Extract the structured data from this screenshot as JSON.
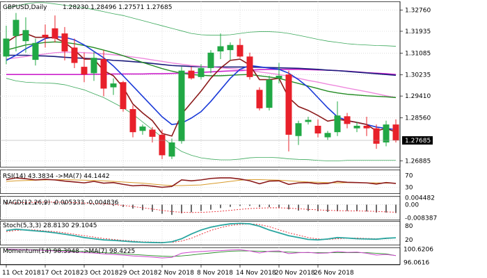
{
  "chart_data": {
    "type": "candlestick",
    "main": {
      "title": "GBPUSD,Daily",
      "ohlc_header": "1.28230 1.28496 1.27571 1.27685",
      "price_axis_ticks": [
        "1.32760",
        "1.31935",
        "1.31085",
        "1.30235",
        "1.29410",
        "1.28560",
        "1.26885"
      ],
      "current_price_label": "1.27685",
      "ylim": [
        1.2665,
        1.331
      ],
      "candles": [
        {
          "o": 1.3095,
          "h": 1.3215,
          "l": 1.3065,
          "c": 1.3165
        },
        {
          "o": 1.3175,
          "h": 1.3265,
          "l": 1.3115,
          "c": 1.3238
        },
        {
          "o": 1.3155,
          "h": 1.3248,
          "l": 1.311,
          "c": 1.3198
        },
        {
          "o": 1.3082,
          "h": 1.3165,
          "l": 1.306,
          "c": 1.3148
        },
        {
          "o": 1.318,
          "h": 1.322,
          "l": 1.313,
          "c": 1.317
        },
        {
          "o": 1.3205,
          "h": 1.3255,
          "l": 1.315,
          "c": 1.3165
        },
        {
          "o": 1.3185,
          "h": 1.321,
          "l": 1.308,
          "c": 1.3115
        },
        {
          "o": 1.313,
          "h": 1.3165,
          "l": 1.305,
          "c": 1.307
        },
        {
          "o": 1.3055,
          "h": 1.311,
          "l": 1.2995,
          "c": 1.3025
        },
        {
          "o": 1.303,
          "h": 1.3115,
          "l": 1.3,
          "c": 1.309
        },
        {
          "o": 1.3085,
          "h": 1.312,
          "l": 1.294,
          "c": 1.297
        },
        {
          "o": 1.2975,
          "h": 1.301,
          "l": 1.2945,
          "c": 1.299
        },
        {
          "o": 1.2995,
          "h": 1.3,
          "l": 1.288,
          "c": 1.289
        },
        {
          "o": 1.289,
          "h": 1.2905,
          "l": 1.278,
          "c": 1.28
        },
        {
          "o": 1.2805,
          "h": 1.283,
          "l": 1.279,
          "c": 1.2822
        },
        {
          "o": 1.281,
          "h": 1.282,
          "l": 1.276,
          "c": 1.2782
        },
        {
          "o": 1.279,
          "h": 1.281,
          "l": 1.2695,
          "c": 1.271
        },
        {
          "o": 1.2705,
          "h": 1.2775,
          "l": 1.2695,
          "c": 1.276
        },
        {
          "o": 1.2765,
          "h": 1.3055,
          "l": 1.2755,
          "c": 1.304
        },
        {
          "o": 1.304,
          "h": 1.3055,
          "l": 1.3005,
          "c": 1.301
        },
        {
          "o": 1.3015,
          "h": 1.3065,
          "l": 1.3005,
          "c": 1.305
        },
        {
          "o": 1.305,
          "h": 1.312,
          "l": 1.303,
          "c": 1.311
        },
        {
          "o": 1.3115,
          "h": 1.3185,
          "l": 1.3085,
          "c": 1.3135
        },
        {
          "o": 1.312,
          "h": 1.315,
          "l": 1.308,
          "c": 1.314
        },
        {
          "o": 1.314,
          "h": 1.3165,
          "l": 1.309,
          "c": 1.3095
        },
        {
          "o": 1.3095,
          "h": 1.311,
          "l": 1.3005,
          "c": 1.3015
        },
        {
          "o": 1.2965,
          "h": 1.2975,
          "l": 1.2885,
          "c": 1.2893
        },
        {
          "o": 1.2895,
          "h": 1.302,
          "l": 1.2885,
          "c": 1.3005
        },
        {
          "o": 1.301,
          "h": 1.307,
          "l": 1.299,
          "c": 1.302
        },
        {
          "o": 1.3025,
          "h": 1.304,
          "l": 1.2725,
          "c": 1.279
        },
        {
          "o": 1.2785,
          "h": 1.2845,
          "l": 1.275,
          "c": 1.2835
        },
        {
          "o": 1.284,
          "h": 1.286,
          "l": 1.283,
          "c": 1.2848
        },
        {
          "o": 1.2825,
          "h": 1.285,
          "l": 1.278,
          "c": 1.2795
        },
        {
          "o": 1.278,
          "h": 1.2805,
          "l": 1.277,
          "c": 1.2797
        },
        {
          "o": 1.28,
          "h": 1.292,
          "l": 1.2785,
          "c": 1.2865
        },
        {
          "o": 1.2862,
          "h": 1.2875,
          "l": 1.2815,
          "c": 1.2832
        },
        {
          "o": 1.2815,
          "h": 1.284,
          "l": 1.28,
          "c": 1.2825
        },
        {
          "o": 1.2825,
          "h": 1.286,
          "l": 1.2785,
          "c": 1.2815
        },
        {
          "o": 1.2815,
          "h": 1.283,
          "l": 1.2735,
          "c": 1.2755
        },
        {
          "o": 1.276,
          "h": 1.2845,
          "l": 1.2745,
          "c": 1.283
        },
        {
          "o": 1.283,
          "h": 1.285,
          "l": 1.276,
          "c": 1.2768
        }
      ],
      "overlays": [
        {
          "name": "bb-upper",
          "color": "#3aa85a",
          "width": 0.8,
          "values": [
            1.3285,
            1.3292,
            1.33,
            1.3305,
            1.3305,
            1.33,
            1.3295,
            1.329,
            1.3285,
            1.3278,
            1.327,
            1.3262,
            1.3255,
            1.3245,
            1.3235,
            1.3225,
            1.3215,
            1.3205,
            1.3195,
            1.3185,
            1.318,
            1.3178,
            1.3178,
            1.318,
            1.3185,
            1.319,
            1.3192,
            1.3192,
            1.319,
            1.3185,
            1.3178,
            1.317,
            1.3162,
            1.3155,
            1.315,
            1.3145,
            1.3142,
            1.314,
            1.3138,
            1.3137,
            1.3135
          ]
        },
        {
          "name": "bb-lower",
          "color": "#3aa85a",
          "width": 0.8,
          "values": [
            1.301,
            1.3,
            1.2995,
            1.2993,
            1.2992,
            1.299,
            1.2985,
            1.2975,
            1.2965,
            1.295,
            1.2935,
            1.2915,
            1.2895,
            1.287,
            1.284,
            1.281,
            1.278,
            1.275,
            1.2725,
            1.271,
            1.27,
            1.2695,
            1.2692,
            1.2692,
            1.2695,
            1.27,
            1.2702,
            1.2702,
            1.27,
            1.2696,
            1.2694,
            1.2693,
            1.269,
            1.2688,
            1.2688,
            1.269,
            1.269,
            1.269,
            1.269,
            1.269,
            1.269
          ]
        },
        {
          "name": "sma-200",
          "color": "#cc22cc",
          "width": 1.6,
          "values": [
            1.3025,
            1.3025,
            1.3025,
            1.3025,
            1.3025,
            1.3025,
            1.3025,
            1.3025,
            1.3025,
            1.3026,
            1.3026,
            1.3027,
            1.3027,
            1.3027,
            1.3027,
            1.3028,
            1.3028,
            1.3029,
            1.303,
            1.3031,
            1.3033,
            1.3035,
            1.3037,
            1.3039,
            1.304,
            1.3042,
            1.3044,
            1.3045,
            1.3045,
            1.3045,
            1.3045,
            1.3044,
            1.3043,
            1.3042,
            1.304,
            1.3038,
            1.3035,
            1.3032,
            1.303,
            1.3028,
            1.3025
          ]
        },
        {
          "name": "sma-100",
          "color": "#1a1a7a",
          "width": 1.6,
          "values": [
            1.31,
            1.31,
            1.31,
            1.3098,
            1.3097,
            1.3095,
            1.3092,
            1.309,
            1.3088,
            1.3086,
            1.3084,
            1.308,
            1.3078,
            1.3075,
            1.3072,
            1.3068,
            1.3064,
            1.306,
            1.3058,
            1.3056,
            1.3055,
            1.3054,
            1.3054,
            1.3054,
            1.3054,
            1.3054,
            1.3053,
            1.3052,
            1.3051,
            1.305,
            1.3049,
            1.3047,
            1.3045,
            1.3042,
            1.304,
            1.3037,
            1.3034,
            1.3031,
            1.3028,
            1.3025,
            1.3022
          ]
        },
        {
          "name": "sma-55",
          "color": "#ee88dd",
          "width": 1.4,
          "values": [
            1.3085,
            1.309,
            1.3095,
            1.31,
            1.3105,
            1.311,
            1.3112,
            1.3112,
            1.311,
            1.3108,
            1.3105,
            1.3102,
            1.3098,
            1.3093,
            1.3088,
            1.3082,
            1.3076,
            1.307,
            1.3065,
            1.306,
            1.3057,
            1.3054,
            1.3051,
            1.3048,
            1.3045,
            1.304,
            1.3035,
            1.303,
            1.3025,
            1.3018,
            1.301,
            1.3002,
            1.2995,
            1.2987,
            1.298,
            1.2972,
            1.2965,
            1.2958,
            1.295,
            1.2942,
            1.2935
          ]
        },
        {
          "name": "sma-30",
          "color": "#228b22",
          "width": 1.4,
          "values": [
            1.312,
            1.313,
            1.314,
            1.3145,
            1.315,
            1.3152,
            1.315,
            1.3145,
            1.3138,
            1.313,
            1.312,
            1.311,
            1.3098,
            1.3085,
            1.3072,
            1.306,
            1.3048,
            1.3038,
            1.303,
            1.3025,
            1.3022,
            1.302,
            1.302,
            1.3022,
            1.3024,
            1.3025,
            1.302,
            1.3015,
            1.301,
            1.3,
            1.299,
            1.298,
            1.297,
            1.296,
            1.2953,
            1.2948,
            1.2945,
            1.2942,
            1.294,
            1.2938,
            1.2935
          ]
        },
        {
          "name": "sma-10",
          "color": "#1a3ad8",
          "width": 1.6,
          "values": [
            1.308,
            1.31,
            1.3125,
            1.3145,
            1.3165,
            1.3172,
            1.317,
            1.316,
            1.314,
            1.3115,
            1.309,
            1.3058,
            1.302,
            1.298,
            1.294,
            1.29,
            1.286,
            1.283,
            1.2835,
            1.2855,
            1.288,
            1.292,
            1.2965,
            1.301,
            1.3045,
            1.306,
            1.3055,
            1.305,
            1.3045,
            1.303,
            1.3005,
            1.2975,
            1.2935,
            1.2895,
            1.286,
            1.2845,
            1.2838,
            1.283,
            1.282,
            1.2815,
            1.281
          ]
        },
        {
          "name": "ema-5",
          "color": "#8b1a1a",
          "width": 1.6,
          "values": [
            1.315,
            1.3175,
            1.3185,
            1.317,
            1.317,
            1.3168,
            1.315,
            1.312,
            1.3085,
            1.3085,
            1.304,
            1.302,
            1.2975,
            1.291,
            1.2875,
            1.2845,
            1.2795,
            1.2785,
            1.287,
            1.2915,
            1.296,
            1.301,
            1.305,
            1.308,
            1.3085,
            1.3062,
            1.3005,
            1.3005,
            1.301,
            1.2935,
            1.29,
            1.2885,
            1.2865,
            1.2843,
            1.285,
            1.2845,
            1.2838,
            1.283,
            1.2805,
            1.2815,
            1.28
          ]
        }
      ]
    },
    "rsi": {
      "header": "RSI(14) 43.3834 ->MA(7) 44.1442",
      "ticks": [
        "70",
        "30"
      ],
      "ylim": [
        10,
        90
      ],
      "rsi": [
        56,
        62,
        59,
        55,
        57,
        55,
        51,
        48,
        45,
        50,
        44,
        46,
        40,
        35,
        37,
        34,
        30,
        33,
        55,
        52,
        55,
        60,
        62,
        62,
        58,
        52,
        42,
        51,
        52,
        40,
        45,
        46,
        42,
        43,
        50,
        47,
        46,
        45,
        41,
        46,
        43
      ],
      "ma": [
        50,
        52,
        53,
        54,
        55,
        56,
        56,
        55,
        54,
        53,
        52,
        50,
        48,
        46,
        44,
        41,
        38,
        36,
        36,
        37,
        38,
        42,
        46,
        50,
        54,
        56,
        56,
        55,
        54,
        52,
        50,
        48,
        47,
        46,
        45,
        46,
        46,
        45,
        45,
        44,
        44
      ]
    },
    "macd": {
      "header": "MACD(12,26,9) -0.005333 -0.004836",
      "ticks": [
        "0.004482",
        "0.00",
        "-0.008387"
      ],
      "ylim": [
        -0.0095,
        0.0055
      ],
      "histogram": [
        0.0015,
        0.0018,
        0.002,
        0.0019,
        0.0018,
        0.0016,
        0.0012,
        0.0008,
        0.0003,
        0.0001,
        -0.0004,
        -0.0008,
        -0.0015,
        -0.0025,
        -0.0035,
        -0.0045,
        -0.0058,
        -0.0065,
        -0.0055,
        -0.0048,
        -0.004,
        -0.0032,
        -0.0022,
        -0.0014,
        -0.0008,
        -0.0008,
        -0.0015,
        -0.0016,
        -0.0018,
        -0.003,
        -0.0038,
        -0.004,
        -0.0042,
        -0.0046,
        -0.0042,
        -0.004,
        -0.0041,
        -0.0043,
        -0.005,
        -0.005,
        -0.0053
      ],
      "signal": [
        0.001,
        0.0012,
        0.0014,
        0.0015,
        0.0016,
        0.0016,
        0.0015,
        0.0013,
        0.001,
        0.0008,
        0.0005,
        0.0001,
        -0.0005,
        -0.0012,
        -0.002,
        -0.0028,
        -0.0036,
        -0.0044,
        -0.0048,
        -0.005,
        -0.0049,
        -0.0046,
        -0.0042,
        -0.0036,
        -0.003,
        -0.0025,
        -0.0022,
        -0.002,
        -0.002,
        -0.0022,
        -0.0026,
        -0.003,
        -0.0033,
        -0.0036,
        -0.0038,
        -0.0039,
        -0.004,
        -0.0041,
        -0.0043,
        -0.0046,
        -0.0048
      ]
    },
    "stoch": {
      "header": "Stoch(5,3,3) 28.8130 29.1045",
      "ticks": [
        "80",
        "20"
      ],
      "ylim": [
        0,
        100
      ],
      "k": [
        60,
        65,
        62,
        58,
        55,
        50,
        44,
        38,
        30,
        25,
        20,
        18,
        15,
        12,
        10,
        9,
        8,
        12,
        25,
        45,
        62,
        74,
        82,
        88,
        90,
        88,
        78,
        62,
        50,
        38,
        30,
        22,
        20,
        24,
        30,
        28,
        25,
        24,
        23,
        27,
        29
      ],
      "d": [
        55,
        60,
        63,
        62,
        58,
        55,
        50,
        44,
        38,
        32,
        26,
        22,
        18,
        15,
        12,
        11,
        10,
        10,
        15,
        27,
        44,
        60,
        72,
        81,
        86,
        88,
        85,
        76,
        63,
        50,
        40,
        30,
        24,
        22,
        25,
        27,
        28,
        26,
        25,
        25,
        29
      ]
    },
    "momentum": {
      "header": "Momentum(14) 98.3948 ->MA(7) 98.4225",
      "ticks": [
        "100.6206",
        "96.0616"
      ],
      "ylim": [
        95.5,
        101.2
      ],
      "mom": [
        100.6,
        100.5,
        100.4,
        100.3,
        100.2,
        100.0,
        99.8,
        99.6,
        99.4,
        99.3,
        99.0,
        98.8,
        98.6,
        98.3,
        98.1,
        97.9,
        97.6,
        97.8,
        99.2,
        99.6,
        99.8,
        100.0,
        100.1,
        100.3,
        100.4,
        100.0,
        99.3,
        99.9,
        100.0,
        99.1,
        99.4,
        99.5,
        99.2,
        99.3,
        99.8,
        99.5,
        99.6,
        99.2,
        98.6,
        98.8,
        98.4
      ],
      "ma": [
        100.3,
        100.4,
        100.4,
        100.4,
        100.3,
        100.2,
        100.1,
        100.0,
        99.8,
        99.6,
        99.4,
        99.2,
        99.0,
        98.8,
        98.6,
        98.4,
        98.2,
        98.1,
        98.3,
        98.6,
        99.0,
        99.3,
        99.6,
        99.9,
        100.0,
        100.0,
        99.9,
        99.8,
        99.7,
        99.6,
        99.5,
        99.4,
        99.4,
        99.4,
        99.4,
        99.4,
        99.4,
        99.4,
        99.2,
        99.0,
        98.4
      ]
    },
    "date_labels": [
      {
        "label": "11 Oct 2018",
        "index": 0
      },
      {
        "label": "17 Oct 2018",
        "index": 4
      },
      {
        "label": "23 Oct 2018",
        "index": 8
      },
      {
        "label": "29 Oct 2018",
        "index": 12
      },
      {
        "label": "2 Nov 2018",
        "index": 16
      },
      {
        "label": "8 Nov 2018",
        "index": 20
      },
      {
        "label": "14 Nov 2018",
        "index": 24
      },
      {
        "label": "20 Nov 2018",
        "index": 28
      },
      {
        "label": "26 Nov 2018",
        "index": 32
      }
    ],
    "colors": {
      "up": "#21a845",
      "down": "#e8202a",
      "grid": "#c8c8c8",
      "axis": "#000000",
      "price_label_bg": "#000000",
      "price_label_fg": "#ffffff",
      "rsi_line": "#8b1a1a",
      "rsi_ma": "#d89a2a",
      "macd_hist": "#6a6a6a",
      "macd_signal": "#e8202a",
      "stoch_k": "#2aa6a0",
      "stoch_d": "#e8202a",
      "mom_line": "#cc44cc",
      "mom_ma": "#228b22"
    }
  }
}
